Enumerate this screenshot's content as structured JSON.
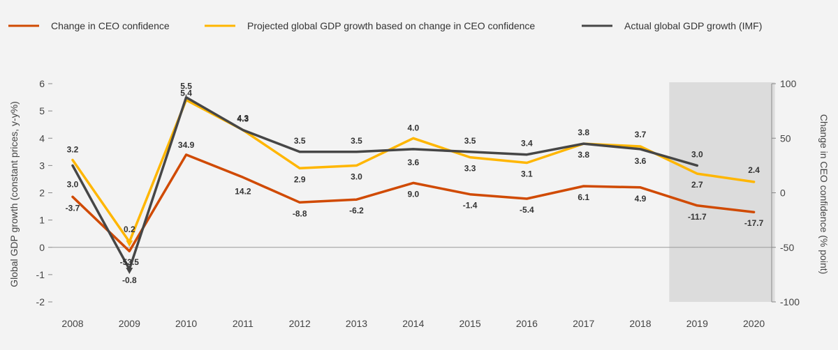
{
  "chart_data": {
    "type": "line",
    "categories": [
      "2008",
      "2009",
      "2010",
      "2011",
      "2012",
      "2013",
      "2014",
      "2015",
      "2016",
      "2017",
      "2018",
      "2019",
      "2020"
    ],
    "projection_shading": {
      "from": "2019",
      "to": "2020"
    },
    "left_axis": {
      "label": "Global GDP growth (constant prices, y-y%)",
      "range": [
        -2,
        6
      ],
      "ticks": [
        -2,
        -1,
        0,
        1,
        2,
        3,
        4,
        5,
        6
      ]
    },
    "right_axis": {
      "label": "Change in CEO confidence (% point)",
      "range": [
        -100,
        100
      ],
      "ticks": [
        -100,
        -50,
        0,
        50,
        100
      ]
    },
    "series": [
      {
        "name": "Change in CEO confidence",
        "axis": "right",
        "color": "#d04a02",
        "values": [
          -3.7,
          -53.5,
          34.9,
          14.2,
          -8.8,
          -6.2,
          9.0,
          -1.4,
          -5.4,
          6.1,
          4.9,
          -11.7,
          -17.7
        ],
        "labels": [
          "-3.7",
          "-53.5",
          "34.9",
          "14.2",
          "-8.8",
          "-6.2",
          "9.0",
          "-1.4",
          "-5.4",
          "6.1",
          "4.9",
          "-11.7",
          "-17.7"
        ]
      },
      {
        "name": "Projected global GDP growth based on change in CEO confidence",
        "axis": "left",
        "color": "#ffb600",
        "values": [
          3.2,
          0.2,
          5.4,
          4.3,
          2.9,
          3.0,
          4.0,
          3.3,
          3.1,
          3.8,
          3.7,
          2.7,
          2.4
        ],
        "labels": [
          "3.2",
          "0.2",
          "5.4",
          "4.3",
          "2.9",
          "3.0",
          "4.0",
          "3.3",
          "3.1",
          "3.8",
          "3.7",
          "2.7",
          "2.4"
        ]
      },
      {
        "name": "Actual global GDP growth (IMF)",
        "axis": "left",
        "color": "#464646",
        "values": [
          3.0,
          -0.8,
          5.5,
          4.3,
          3.5,
          3.5,
          3.6,
          3.5,
          3.4,
          3.8,
          3.6,
          3.0,
          null
        ],
        "labels": [
          "3.0",
          "-0.8",
          "5.5",
          "4.3",
          "3.5",
          "3.5",
          "3.6",
          "3.5",
          "3.4",
          "3.8",
          "3.6",
          "3.0",
          null
        ]
      }
    ]
  }
}
